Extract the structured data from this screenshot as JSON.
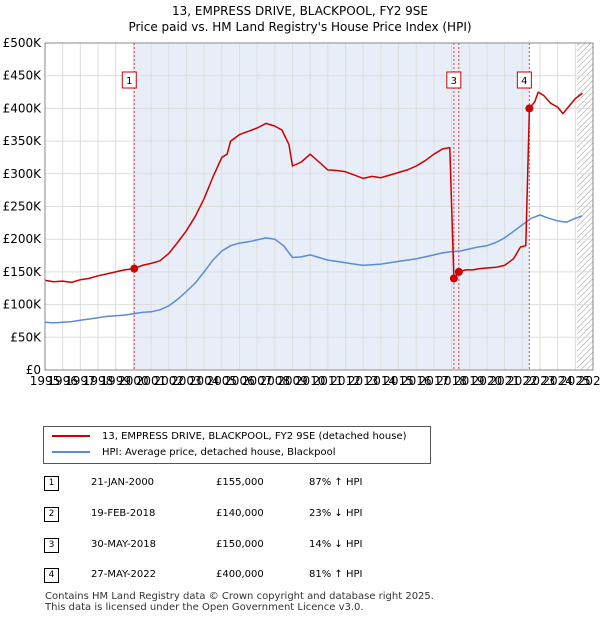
{
  "title_line1": "13, EMPRESS DRIVE, BLACKPOOL, FY2 9SE",
  "title_line2": "Price paid vs. HM Land Registry's House Price Index (HPI)",
  "chart_data": {
    "type": "line",
    "xlim": [
      1995,
      2026
    ],
    "ylim": [
      0,
      500000
    ],
    "yticks": [
      0,
      50000,
      100000,
      150000,
      200000,
      250000,
      300000,
      350000,
      400000,
      450000,
      500000
    ],
    "yticklabels": [
      "£0",
      "£50K",
      "£100K",
      "£150K",
      "£200K",
      "£250K",
      "£300K",
      "£350K",
      "£400K",
      "£450K",
      "£500K"
    ],
    "xticks": [
      1995,
      1996,
      1997,
      1998,
      1999,
      2000,
      2001,
      2002,
      2003,
      2004,
      2005,
      2006,
      2007,
      2008,
      2009,
      2010,
      2011,
      2012,
      2013,
      2014,
      2015,
      2016,
      2017,
      2018,
      2019,
      2020,
      2021,
      2022,
      2023,
      2024,
      2025,
      2026
    ],
    "xticklabels": [
      "1995",
      "1996",
      "1997",
      "1998",
      "1999",
      "2000",
      "2001",
      "2002",
      "2003",
      "2004",
      "2005",
      "2006",
      "2007",
      "2008",
      "2009",
      "2010",
      "2011",
      "2012",
      "2013",
      "2014",
      "2015",
      "2016",
      "2017",
      "2018",
      "2019",
      "2020",
      "2021",
      "2022",
      "2023",
      "2024",
      "2025",
      "2026"
    ],
    "grid": true,
    "forecast_hatch_from": 2025.1,
    "series": [
      {
        "name": "13, EMPRESS DRIVE, BLACKPOOL, FY2 9SE (detached house)",
        "color": "#cc0000",
        "points": [
          [
            1995.0,
            137000
          ],
          [
            1995.5,
            135000
          ],
          [
            1996.0,
            136000
          ],
          [
            1996.5,
            134000
          ],
          [
            1997.0,
            138000
          ],
          [
            1997.5,
            140000
          ],
          [
            1998.0,
            144000
          ],
          [
            1998.5,
            147000
          ],
          [
            1999.0,
            150000
          ],
          [
            1999.5,
            153000
          ],
          [
            2000.05,
            155000
          ],
          [
            2000.5,
            160000
          ],
          [
            2001.0,
            163000
          ],
          [
            2001.5,
            167000
          ],
          [
            2002.0,
            178000
          ],
          [
            2002.5,
            195000
          ],
          [
            2003.0,
            213000
          ],
          [
            2003.5,
            235000
          ],
          [
            2004.0,
            262000
          ],
          [
            2004.5,
            295000
          ],
          [
            2005.0,
            325000
          ],
          [
            2005.3,
            330000
          ],
          [
            2005.5,
            350000
          ],
          [
            2006.0,
            360000
          ],
          [
            2006.5,
            365000
          ],
          [
            2007.0,
            370000
          ],
          [
            2007.5,
            377000
          ],
          [
            2008.0,
            373000
          ],
          [
            2008.4,
            367000
          ],
          [
            2008.8,
            345000
          ],
          [
            2009.0,
            312000
          ],
          [
            2009.5,
            318000
          ],
          [
            2010.0,
            330000
          ],
          [
            2010.5,
            318000
          ],
          [
            2011.0,
            306000
          ],
          [
            2011.5,
            305000
          ],
          [
            2012.0,
            303000
          ],
          [
            2012.5,
            298000
          ],
          [
            2013.0,
            293000
          ],
          [
            2013.5,
            296000
          ],
          [
            2014.0,
            294000
          ],
          [
            2014.5,
            298000
          ],
          [
            2015.0,
            302000
          ],
          [
            2015.5,
            306000
          ],
          [
            2016.0,
            312000
          ],
          [
            2016.5,
            320000
          ],
          [
            2017.0,
            330000
          ],
          [
            2017.5,
            338000
          ],
          [
            2017.9,
            340000
          ],
          [
            2018.13,
            140000
          ],
          [
            2018.41,
            150000
          ],
          [
            2018.8,
            153000
          ],
          [
            2019.2,
            153000
          ],
          [
            2019.6,
            155000
          ],
          [
            2020.0,
            156000
          ],
          [
            2020.5,
            157000
          ],
          [
            2021.0,
            160000
          ],
          [
            2021.5,
            170000
          ],
          [
            2021.9,
            188000
          ],
          [
            2022.2,
            190000
          ],
          [
            2022.4,
            400000
          ],
          [
            2022.7,
            410000
          ],
          [
            2022.9,
            425000
          ],
          [
            2023.2,
            420000
          ],
          [
            2023.6,
            408000
          ],
          [
            2024.0,
            402000
          ],
          [
            2024.3,
            392000
          ],
          [
            2024.6,
            402000
          ],
          [
            2025.0,
            415000
          ],
          [
            2025.4,
            423000
          ]
        ]
      },
      {
        "name": "HPI: Average price, detached house, Blackpool",
        "color": "#5b8ccf",
        "points": [
          [
            1995.0,
            73000
          ],
          [
            1995.5,
            72000
          ],
          [
            1996.0,
            73000
          ],
          [
            1996.5,
            74000
          ],
          [
            1997.0,
            76000
          ],
          [
            1997.5,
            78000
          ],
          [
            1998.0,
            80000
          ],
          [
            1998.5,
            82000
          ],
          [
            1999.0,
            83000
          ],
          [
            1999.5,
            84000
          ],
          [
            2000.0,
            86000
          ],
          [
            2000.5,
            88000
          ],
          [
            2001.0,
            89000
          ],
          [
            2001.5,
            92000
          ],
          [
            2002.0,
            98000
          ],
          [
            2002.5,
            108000
          ],
          [
            2003.0,
            120000
          ],
          [
            2003.5,
            133000
          ],
          [
            2004.0,
            150000
          ],
          [
            2004.5,
            168000
          ],
          [
            2005.0,
            182000
          ],
          [
            2005.5,
            190000
          ],
          [
            2006.0,
            194000
          ],
          [
            2006.5,
            196000
          ],
          [
            2007.0,
            199000
          ],
          [
            2007.5,
            202000
          ],
          [
            2008.0,
            200000
          ],
          [
            2008.5,
            190000
          ],
          [
            2009.0,
            172000
          ],
          [
            2009.5,
            173000
          ],
          [
            2010.0,
            176000
          ],
          [
            2010.5,
            172000
          ],
          [
            2011.0,
            168000
          ],
          [
            2011.5,
            166000
          ],
          [
            2012.0,
            164000
          ],
          [
            2012.5,
            162000
          ],
          [
            2013.0,
            160000
          ],
          [
            2013.5,
            161000
          ],
          [
            2014.0,
            162000
          ],
          [
            2014.5,
            164000
          ],
          [
            2015.0,
            166000
          ],
          [
            2015.5,
            168000
          ],
          [
            2016.0,
            170000
          ],
          [
            2016.5,
            173000
          ],
          [
            2017.0,
            176000
          ],
          [
            2017.5,
            179000
          ],
          [
            2018.0,
            181000
          ],
          [
            2018.5,
            182000
          ],
          [
            2019.0,
            185000
          ],
          [
            2019.5,
            188000
          ],
          [
            2020.0,
            190000
          ],
          [
            2020.5,
            195000
          ],
          [
            2021.0,
            202000
          ],
          [
            2021.5,
            212000
          ],
          [
            2022.0,
            222000
          ],
          [
            2022.5,
            232000
          ],
          [
            2023.0,
            237000
          ],
          [
            2023.5,
            232000
          ],
          [
            2024.0,
            228000
          ],
          [
            2024.5,
            226000
          ],
          [
            2025.0,
            232000
          ],
          [
            2025.4,
            236000
          ]
        ]
      }
    ],
    "sales": [
      {
        "label": "1",
        "x": 2000.05,
        "price": 155000
      },
      {
        "label": "2",
        "x": 2018.13,
        "price": 140000
      },
      {
        "label": "3",
        "x": 2018.41,
        "price": 150000
      },
      {
        "label": "4",
        "x": 2022.4,
        "price": 400000
      }
    ],
    "markers": [
      {
        "label": "1",
        "x": 2000.05
      },
      {
        "label": "3",
        "x": 2018.41
      },
      {
        "label": "4",
        "x": 2022.4
      }
    ]
  },
  "legend": {
    "property": "13, EMPRESS DRIVE, BLACKPOOL, FY2 9SE (detached house)",
    "hpi": "HPI: Average price, detached house, Blackpool"
  },
  "sales_table": [
    {
      "num": "1",
      "date": "21-JAN-2000",
      "price": "£155,000",
      "hpi": "87% ↑ HPI"
    },
    {
      "num": "2",
      "date": "19-FEB-2018",
      "price": "£140,000",
      "hpi": "23% ↓ HPI"
    },
    {
      "num": "3",
      "date": "30-MAY-2018",
      "price": "£150,000",
      "hpi": "14% ↓ HPI"
    },
    {
      "num": "4",
      "date": "27-MAY-2022",
      "price": "£400,000",
      "hpi": "81% ↑ HPI"
    }
  ],
  "footer": {
    "line1": "Contains HM Land Registry data © Crown copyright and database right 2025.",
    "line2": "This data is licensed under the Open Government Licence v3.0."
  }
}
